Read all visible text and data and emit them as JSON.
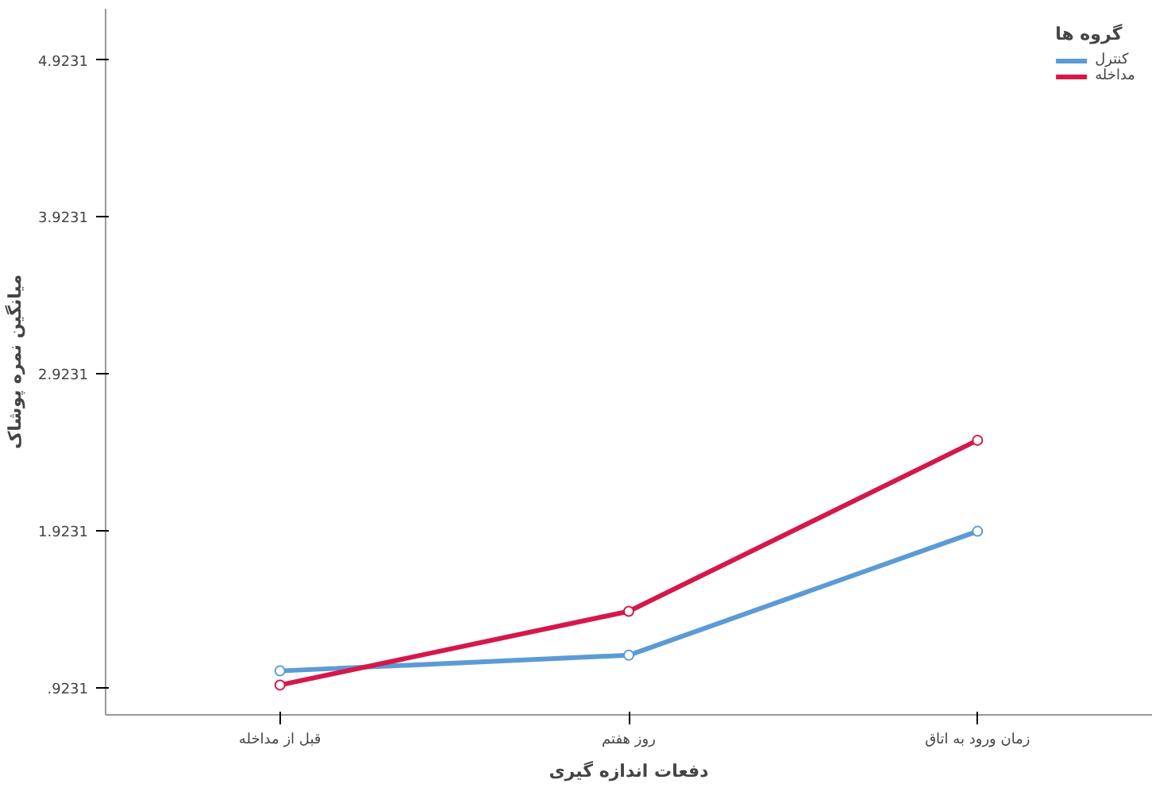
{
  "chart_data": {
    "type": "line",
    "xlabel": "دفعات اندازه گیری",
    "ylabel": "میانگین نمره پوشاک",
    "legend_title": "گروه ها",
    "categories": [
      "قبل از مداخله",
      "روز هفتم",
      "زمان ورود به اتاق"
    ],
    "series": [
      {
        "name": "کنترل",
        "color": "#5b9bd5",
        "values": [
          1.03,
          1.13,
          1.92
        ]
      },
      {
        "name": "مداخله",
        "color": "#d6174a",
        "values": [
          0.94,
          1.41,
          2.5
        ]
      }
    ],
    "ylim": [
      0.75,
      5.25
    ],
    "yticks": [
      {
        "value": 0.9231,
        "label": ".9231"
      },
      {
        "value": 1.9231,
        "label": "1.9231"
      },
      {
        "value": 2.9231,
        "label": "2.9231"
      },
      {
        "value": 3.9231,
        "label": "3.9231"
      },
      {
        "value": 4.9231,
        "label": "4.9231"
      }
    ],
    "marker": "circle",
    "line_style": "solid",
    "grid": false,
    "legend": "top right"
  }
}
